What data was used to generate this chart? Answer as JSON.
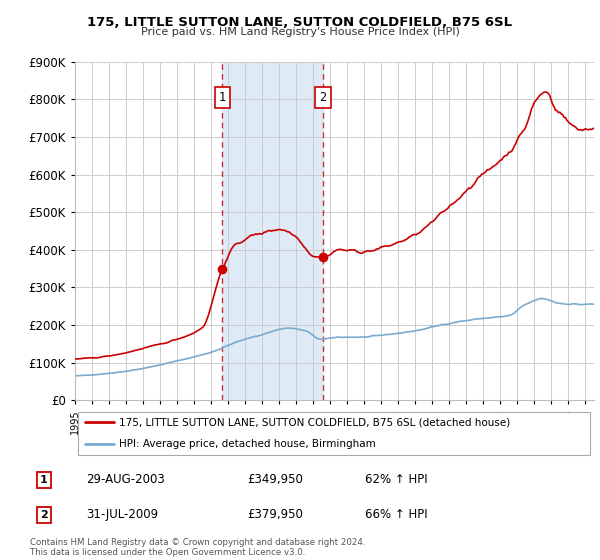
{
  "title": "175, LITTLE SUTTON LANE, SUTTON COLDFIELD, B75 6SL",
  "subtitle": "Price paid vs. HM Land Registry's House Price Index (HPI)",
  "legend_line1": "175, LITTLE SUTTON LANE, SUTTON COLDFIELD, B75 6SL (detached house)",
  "legend_line2": "HPI: Average price, detached house, Birmingham",
  "footnote": "Contains HM Land Registry data © Crown copyright and database right 2024.\nThis data is licensed under the Open Government Licence v3.0.",
  "sale1_date": "29-AUG-2003",
  "sale1_price": "£349,950",
  "sale1_pct": "62% ↑ HPI",
  "sale2_date": "31-JUL-2009",
  "sale2_price": "£379,950",
  "sale2_pct": "66% ↑ HPI",
  "sale1_x": 2003.662,
  "sale2_x": 2009.581,
  "sale1_y": 349950,
  "sale2_y": 379950,
  "red_color": "#cc0000",
  "blue_color": "#7aabcf",
  "shaded_color": "#deeaf5",
  "ylim": [
    0,
    900000
  ],
  "yticks": [
    0,
    100000,
    200000,
    300000,
    400000,
    500000,
    600000,
    700000,
    800000,
    900000
  ],
  "xlim_start": 1995.0,
  "xlim_end": 2025.5
}
